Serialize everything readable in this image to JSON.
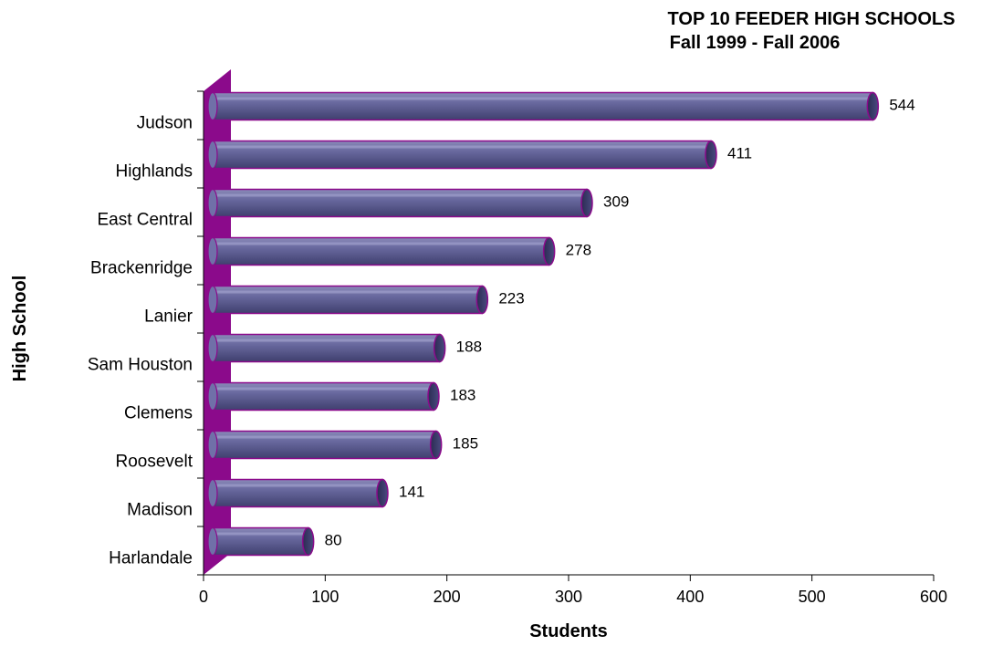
{
  "chart_data": {
    "type": "bar",
    "orientation": "horizontal",
    "title_lines": [
      "TOP 10 FEEDER HIGH SCHOOLS",
      "Fall 1999 - Fall 2006"
    ],
    "xlabel": "Students",
    "ylabel": "High School",
    "xlim": [
      0,
      600
    ],
    "xticks": [
      "0",
      "100",
      "200",
      "300",
      "400",
      "500",
      "600"
    ],
    "categories": [
      "Judson",
      "Highlands",
      "East Central",
      "Brackenridge",
      "Lanier",
      "Sam Houston",
      "Clemens",
      "Roosevelt",
      "Madison",
      "Harlandale"
    ],
    "values": [
      544,
      411,
      309,
      278,
      223,
      188,
      183,
      185,
      141,
      80
    ],
    "data_labels": [
      "544",
      "411",
      "309",
      "278",
      "223",
      "188",
      "183",
      "185",
      "141",
      "80"
    ],
    "grid": false,
    "colors": {
      "bar": "#5a5a8e",
      "bar_edge": "#8b0a8b",
      "wall": "#8b0a8b"
    }
  }
}
